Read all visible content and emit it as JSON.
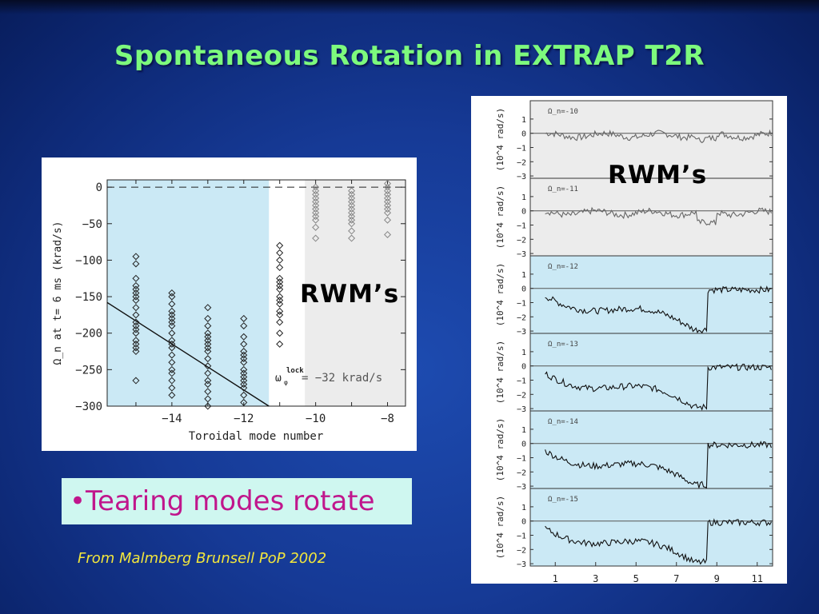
{
  "title": "Spontaneous Rotation in EXTRAP T2R",
  "bullet_text": "•Tearing modes rotate",
  "credit": "From Malmberg Brunsell PoP 2002",
  "rwm_label_left": "RWM’s",
  "rwm_label_right": "RWM’s",
  "colors": {
    "title": "#7dfa7d",
    "bullet": "#c0168c",
    "credit": "#f2e63c",
    "tearing_shade": "#cbe9f5",
    "rwm_shade": "#ececec"
  },
  "chart_data": [
    {
      "type": "scatter",
      "ylabel": "Ω_n at t= 6 ms (krad/s)",
      "xlabel": "Toroidal mode number",
      "xlim": [
        -15.8,
        -7.5
      ],
      "ylim": [
        -300,
        10
      ],
      "x_ticks": [
        -14,
        -12,
        -10,
        -8
      ],
      "y_ticks": [
        0,
        -50,
        -100,
        -150,
        -200,
        -250,
        -300
      ],
      "annotation": "ω_φ^lock = −32 krad/s",
      "series": [
        {
          "x": -15,
          "values": [
            -95,
            -105,
            -125,
            -135,
            -140,
            -145,
            -150,
            -155,
            -165,
            -175,
            -185,
            -190,
            -195,
            -200,
            -210,
            -215,
            -220,
            -225,
            -265
          ]
        },
        {
          "x": -14,
          "values": [
            -145,
            -150,
            -160,
            -170,
            -175,
            -180,
            -185,
            -190,
            -200,
            -210,
            -215,
            -220,
            -230,
            -240,
            -250,
            -255,
            -265,
            -275,
            -285
          ]
        },
        {
          "x": -13,
          "values": [
            -165,
            -180,
            -190,
            -200,
            -205,
            -210,
            -215,
            -220,
            -225,
            -235,
            -245,
            -255,
            -265,
            -270,
            -280,
            -290,
            -300
          ]
        },
        {
          "x": -12,
          "values": [
            -180,
            -190,
            -205,
            -215,
            -225,
            -230,
            -235,
            -240,
            -250,
            -255,
            -260,
            -265,
            -270,
            -275,
            -285,
            -295
          ]
        },
        {
          "x": -11,
          "values": [
            -80,
            -90,
            -100,
            -110,
            -125,
            -130,
            -135,
            -140,
            -150,
            -155,
            -160,
            -170,
            -175,
            -185,
            -200,
            -215
          ]
        },
        {
          "x": -10,
          "values": [
            0,
            -5,
            -10,
            -15,
            -20,
            -25,
            -30,
            -35,
            -40,
            -45,
            -55,
            -70
          ]
        },
        {
          "x": -9,
          "values": [
            -5,
            -10,
            -15,
            -20,
            -25,
            -30,
            -35,
            -40,
            -45,
            -50,
            -60,
            -70
          ]
        },
        {
          "x": -8,
          "values": [
            5,
            0,
            -5,
            -10,
            -15,
            -20,
            -25,
            -30,
            -35,
            -45,
            -65
          ]
        }
      ],
      "fit_line": {
        "x": [
          -15.8,
          -11.3
        ],
        "y": [
          -158,
          -300
        ]
      },
      "lock_line": 0
    },
    {
      "type": "line",
      "ylabel": "(10^4 rad/s)",
      "x_ticks": [
        1,
        3,
        5,
        7,
        9,
        11
      ],
      "y_ticks": [
        1,
        0,
        -1,
        -2,
        -3
      ],
      "panels": [
        {
          "label": "Ω_n=-10",
          "group": "RWM"
        },
        {
          "label": "Ω_n=-11",
          "group": "RWM"
        },
        {
          "label": "Ω_n=-12",
          "group": "tearing"
        },
        {
          "label": "Ω_n=-13",
          "group": "tearing"
        },
        {
          "label": "Ω_n=-14",
          "group": "tearing"
        },
        {
          "label": "Ω_n=-15",
          "group": "tearing"
        }
      ]
    }
  ]
}
